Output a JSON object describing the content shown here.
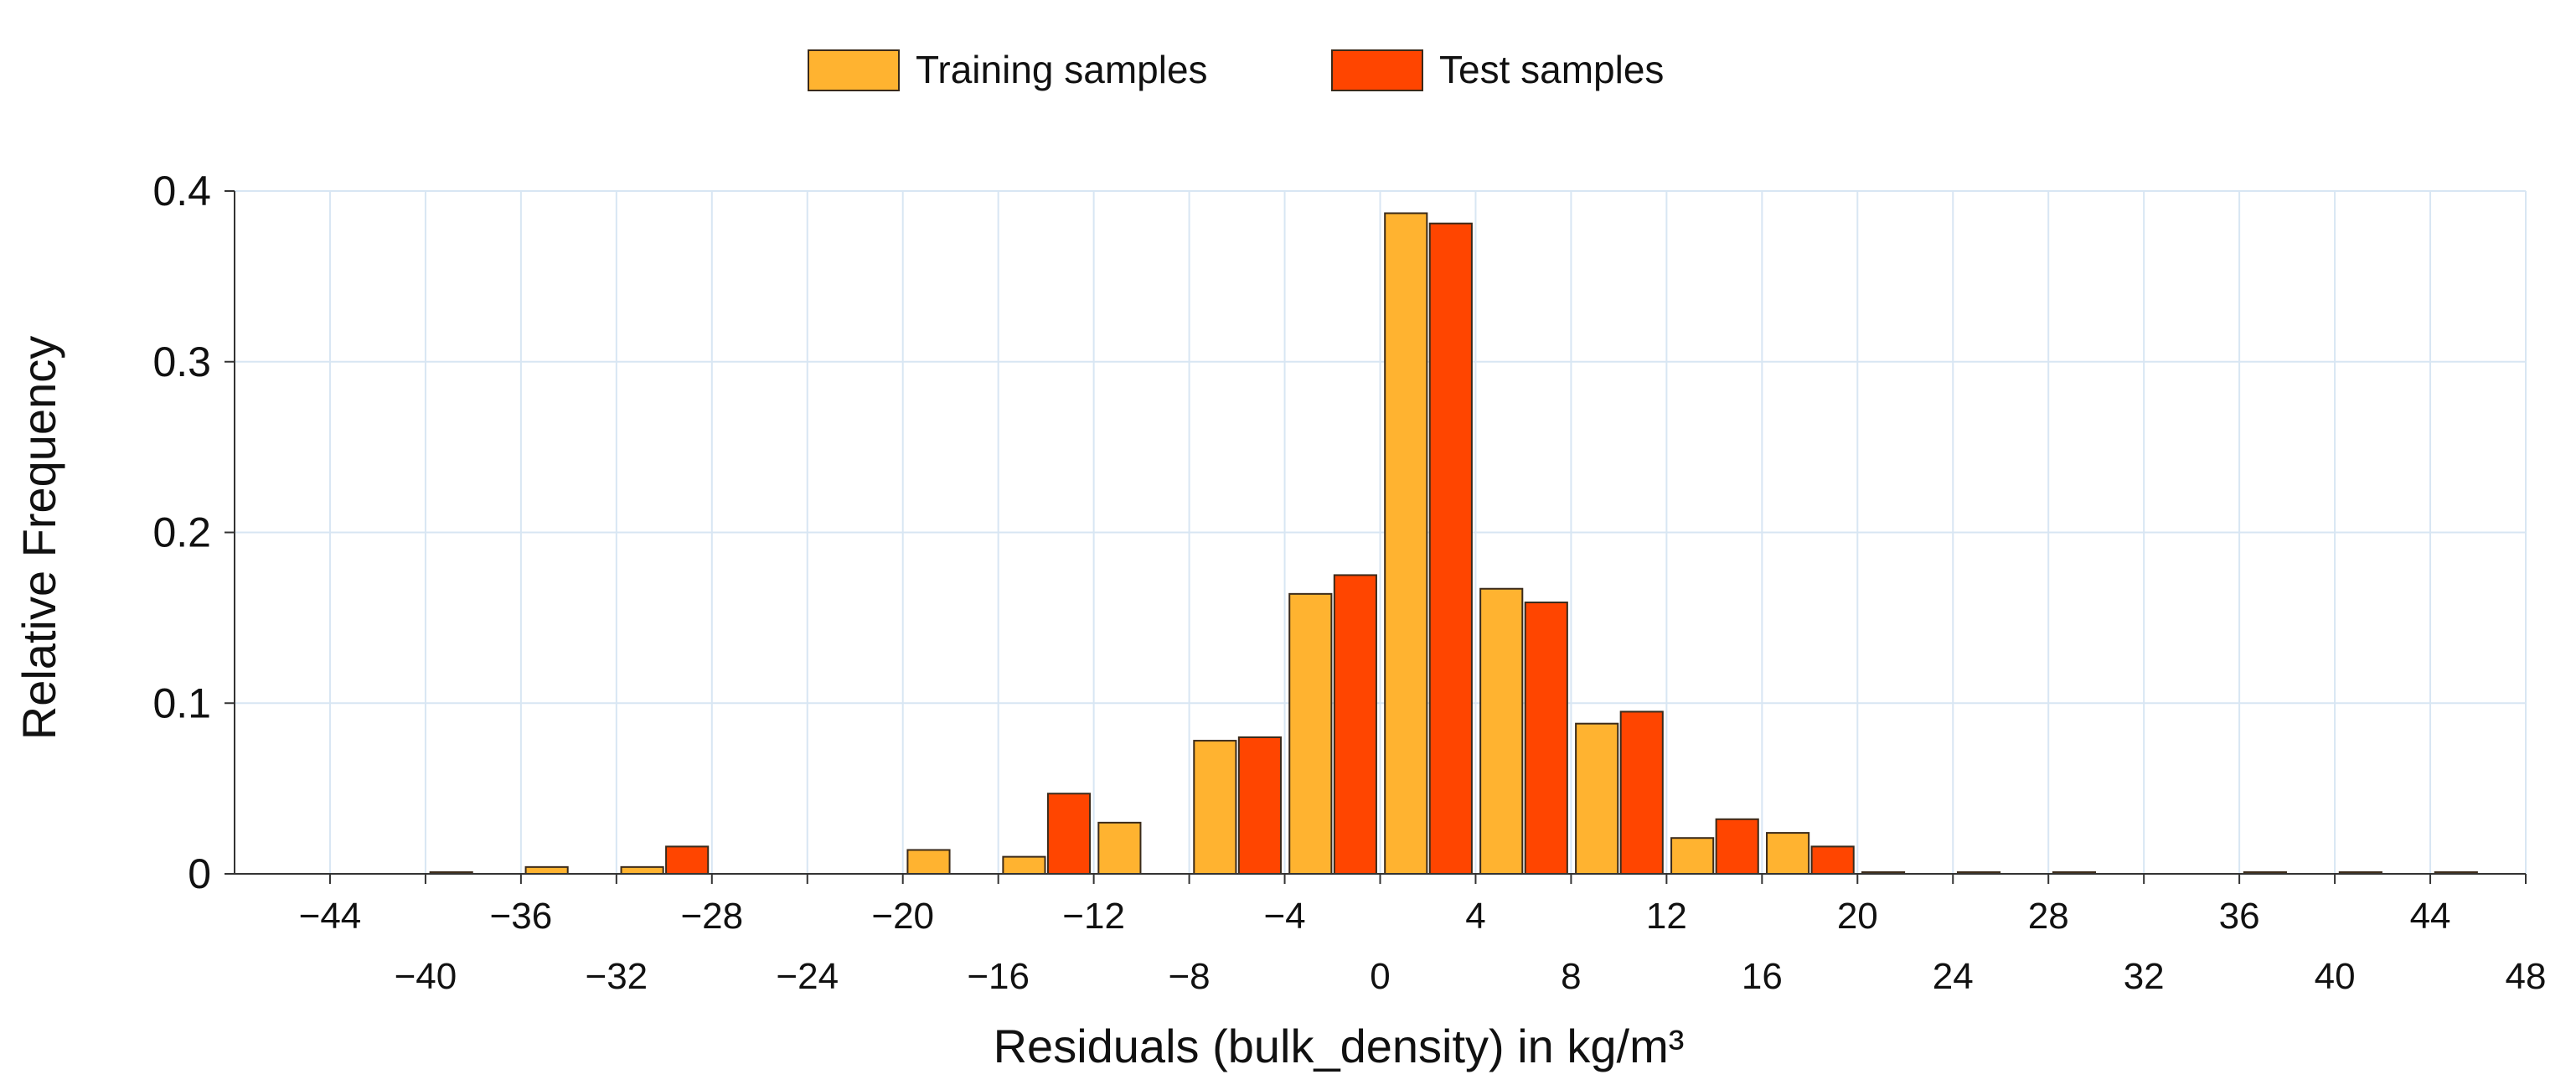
{
  "chart_data": {
    "type": "bar",
    "title": "",
    "xlabel": "Residuals (bulk_density) in kg/m³",
    "ylabel": "Relative Frequency",
    "xlim": [
      -48,
      48
    ],
    "ylim": [
      0,
      0.4
    ],
    "xticks_upper": [
      "−44",
      "−36",
      "−28",
      "−20",
      "−12",
      "−4",
      "4",
      "12",
      "20",
      "28",
      "36",
      "44"
    ],
    "xticks_upper_values": [
      -44,
      -36,
      -28,
      -20,
      -12,
      -4,
      4,
      12,
      20,
      28,
      36,
      44
    ],
    "xticks_lower": [
      "−40",
      "−32",
      "−24",
      "−16",
      "−8",
      "0",
      "8",
      "16",
      "24",
      "32",
      "40",
      "48"
    ],
    "xticks_lower_values": [
      -40,
      -32,
      -24,
      -16,
      -8,
      0,
      8,
      16,
      24,
      32,
      40,
      48
    ],
    "yticks": [
      "0",
      "0.1",
      "0.2",
      "0.3",
      "0.4"
    ],
    "ytick_values": [
      0,
      0.1,
      0.2,
      0.3,
      0.4
    ],
    "grid": true,
    "legend_position": "top-center",
    "bin_width": 4,
    "bin_centers": [
      -46,
      -42,
      -38,
      -34,
      -30,
      -26,
      -22,
      -18,
      -14,
      -10,
      -6,
      -2,
      2,
      6,
      10,
      14,
      18,
      22,
      26,
      30,
      34,
      38,
      42,
      46
    ],
    "series": [
      {
        "name": "Training samples",
        "color": "#FFB330",
        "values": [
          0,
          0,
          0.001,
          0.004,
          0.004,
          0,
          0,
          0.014,
          0.01,
          0.03,
          0.078,
          0.164,
          0.387,
          0.167,
          0.088,
          0.021,
          0.024,
          0.001,
          0.001,
          0.001,
          0,
          0.001,
          0.001,
          0.001
        ]
      },
      {
        "name": "Test samples",
        "color": "#FF4500",
        "values": [
          0,
          0,
          0,
          0,
          0.016,
          0,
          0,
          0,
          0.047,
          0,
          0.08,
          0.175,
          0.381,
          0.159,
          0.095,
          0.032,
          0.016,
          0,
          0,
          0,
          0,
          0,
          0,
          0
        ]
      }
    ]
  }
}
